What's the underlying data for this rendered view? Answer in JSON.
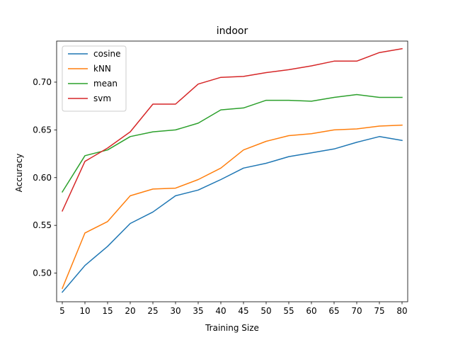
{
  "chart_data": {
    "type": "line",
    "title": "indoor",
    "xlabel": "Training Size",
    "ylabel": "Accuracy",
    "x": [
      5,
      10,
      15,
      20,
      25,
      30,
      35,
      40,
      45,
      50,
      55,
      60,
      65,
      70,
      75,
      80
    ],
    "xticks": [
      "5",
      "10",
      "15",
      "20",
      "25",
      "30",
      "35",
      "40",
      "45",
      "50",
      "55",
      "60",
      "65",
      "70",
      "75",
      "80"
    ],
    "ylim": [
      0.47,
      0.743
    ],
    "yticks": [
      0.5,
      0.55,
      0.6,
      0.65,
      0.7
    ],
    "ytick_labels": [
      "0.50",
      "0.55",
      "0.60",
      "0.65",
      "0.70"
    ],
    "grid": false,
    "legend_position": "upper-left",
    "series": [
      {
        "name": "cosine",
        "color": "#1f77b4",
        "values": [
          0.48,
          0.508,
          0.528,
          0.552,
          0.564,
          0.581,
          0.587,
          0.598,
          0.61,
          0.615,
          0.622,
          0.626,
          0.63,
          0.637,
          0.643,
          0.639
        ]
      },
      {
        "name": "kNN",
        "color": "#ff7f0e",
        "values": [
          0.484,
          0.542,
          0.554,
          0.581,
          0.588,
          0.589,
          0.598,
          0.61,
          0.629,
          0.638,
          0.644,
          0.646,
          0.65,
          0.651,
          0.654,
          0.655
        ]
      },
      {
        "name": "mean",
        "color": "#2ca02c",
        "values": [
          0.585,
          0.623,
          0.629,
          0.643,
          0.648,
          0.65,
          0.657,
          0.671,
          0.673,
          0.681,
          0.681,
          0.68,
          0.684,
          0.687,
          0.684,
          0.684
        ]
      },
      {
        "name": "svm",
        "color": "#d62728",
        "values": [
          0.565,
          0.617,
          0.631,
          0.648,
          0.677,
          0.677,
          0.698,
          0.705,
          0.706,
          0.71,
          0.713,
          0.717,
          0.722,
          0.722,
          0.731,
          0.735
        ]
      }
    ]
  }
}
